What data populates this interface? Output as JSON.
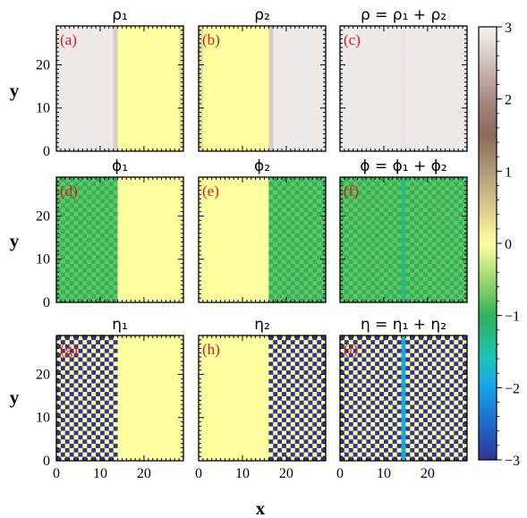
{
  "chart_data": {
    "type": "heatmap",
    "xlabel": "x",
    "ylabel": "y",
    "xlim": [
      0,
      29
    ],
    "ylim": [
      0,
      29
    ],
    "x_major_ticks": [
      0,
      10,
      20
    ],
    "y_major_ticks": [
      0,
      10,
      20
    ],
    "colorbar": {
      "min": -3,
      "max": 3,
      "ticks": [
        3,
        2,
        1,
        0,
        -1,
        -2,
        -3
      ],
      "tick_labels": [
        "3",
        "2",
        "1",
        "0",
        "−1",
        "−2",
        "−3"
      ]
    },
    "panels": [
      {
        "label": "(a)",
        "title": "ρ₁",
        "field": {
          "kind": "profile",
          "region": "left",
          "value": 2.9,
          "wall_value": 2.3,
          "wall_at": 14,
          "edge_value": 0.3
        }
      },
      {
        "label": "(b)",
        "title": "ρ₂",
        "field": {
          "kind": "profile",
          "region": "right",
          "value": 2.9,
          "wall_value": 2.3,
          "wall_at": 15,
          "edge_value": 0.3
        }
      },
      {
        "label": "(c)",
        "title": "ρ = ρ₁ + ρ₂",
        "field": {
          "kind": "uniform",
          "value": 2.9,
          "wall_at": 14,
          "wall_value": 2.85
        }
      },
      {
        "label": "(d)",
        "title": "ϕ₁",
        "field": {
          "kind": "checker",
          "region": "left",
          "values": [
            -0.75,
            -1.0
          ],
          "wall_at": 14
        }
      },
      {
        "label": "(e)",
        "title": "ϕ₂",
        "field": {
          "kind": "checker",
          "region": "right",
          "values": [
            -0.75,
            -1.0
          ],
          "wall_at": 15
        }
      },
      {
        "label": "(f)",
        "title": "ϕ = ϕ₁ + ϕ₂",
        "field": {
          "kind": "checker",
          "region": "all",
          "values": [
            -0.75,
            -1.0
          ],
          "wall_at": 14,
          "wall_value": -1.25
        }
      },
      {
        "label": "(g)",
        "title": "η₁",
        "field": {
          "kind": "checker",
          "region": "left",
          "values": [
            -3.0,
            0.0
          ],
          "wall_at": 14,
          "wall_value": -1.9
        }
      },
      {
        "label": "(h)",
        "title": "η₂",
        "field": {
          "kind": "checker",
          "region": "right",
          "values": [
            -3.0,
            0.0
          ],
          "wall_at": 15,
          "wall_value": -1.9
        }
      },
      {
        "label": "(i)",
        "title": "η = η₁ + η₂",
        "field": {
          "kind": "checker",
          "region": "all",
          "values": [
            -3.0,
            0.0
          ],
          "wall_at": 14,
          "wall_value": -1.9
        }
      }
    ]
  }
}
